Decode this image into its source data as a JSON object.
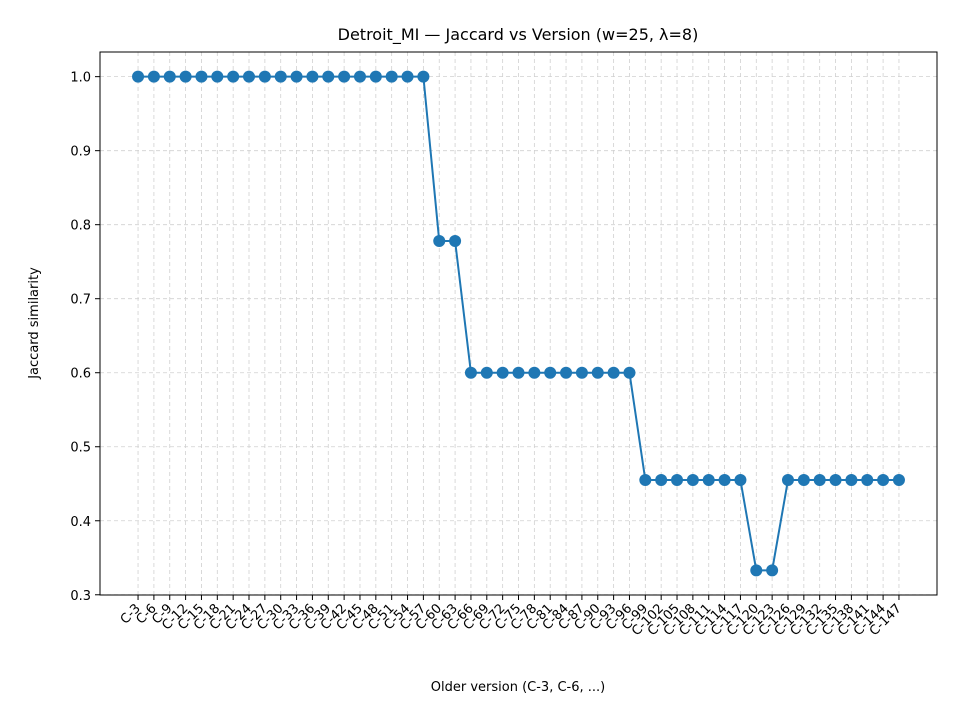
{
  "chart_data": {
    "type": "line",
    "title": "Detroit_MI — Jaccard vs Version (w=25, λ=8)",
    "xlabel": "Older version (C-3, C-6, ...)",
    "ylabel": "Jaccard similarity",
    "categories": [
      "C-3",
      "C-6",
      "C-9",
      "C-12",
      "C-15",
      "C-18",
      "C-21",
      "C-24",
      "C-27",
      "C-30",
      "C-33",
      "C-36",
      "C-39",
      "C-42",
      "C-45",
      "C-48",
      "C-51",
      "C-54",
      "C-57",
      "C-60",
      "C-63",
      "C-66",
      "C-69",
      "C-72",
      "C-75",
      "C-78",
      "C-81",
      "C-84",
      "C-87",
      "C-90",
      "C-93",
      "C-96",
      "C-99",
      "C-102",
      "C-105",
      "C-108",
      "C-111",
      "C-114",
      "C-117",
      "C-120",
      "C-123",
      "C-126",
      "C-129",
      "C-132",
      "C-135",
      "C-138",
      "C-141",
      "C-144",
      "C-147"
    ],
    "values": [
      1,
      1,
      1,
      1,
      1,
      1,
      1,
      1,
      1,
      1,
      1,
      1,
      1,
      1,
      1,
      1,
      1,
      1,
      1,
      0.778,
      0.778,
      0.6,
      0.6,
      0.6,
      0.6,
      0.6,
      0.6,
      0.6,
      0.6,
      0.6,
      0.6,
      0.6,
      0.455,
      0.455,
      0.455,
      0.455,
      0.455,
      0.455,
      0.455,
      0.333,
      0.333,
      0.455,
      0.455,
      0.455,
      0.455,
      0.455,
      0.455,
      0.455,
      0.455
    ],
    "color": "#1f77b4",
    "ylim": [
      0.2997,
      1.0333
    ],
    "yticks": [
      0.3,
      0.4,
      0.5,
      0.6,
      0.7,
      0.8,
      0.9,
      {
        "value": 1,
        "label": "1.0"
      }
    ],
    "grid": true
  }
}
